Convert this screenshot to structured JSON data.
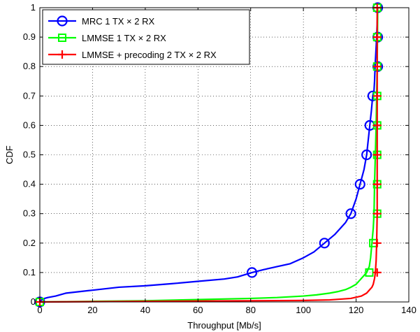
{
  "chart_data": {
    "type": "line",
    "title": "",
    "xlabel": "Throughput [Mb/s]",
    "ylabel": "CDF",
    "xlim": [
      0,
      140
    ],
    "ylim": [
      0,
      1
    ],
    "xticks": [
      "0",
      "20",
      "40",
      "60",
      "80",
      "100",
      "120",
      "140"
    ],
    "yticks": [
      "0",
      "0.1",
      "0.2",
      "0.3",
      "0.4",
      "0.5",
      "0.6",
      "0.7",
      "0.8",
      "0.9",
      "1"
    ],
    "grid": true,
    "legend_position": "top-left",
    "series": [
      {
        "name": "MRC 1 TX × 2 RX",
        "color": "#0000ff",
        "marker": "circle",
        "x": [
          0,
          1,
          3,
          6,
          10,
          15,
          20,
          25,
          30,
          40,
          50,
          60,
          70,
          75,
          80.5,
          85,
          90,
          95,
          100,
          104,
          108,
          112,
          116,
          118,
          120,
          121.5,
          123,
          124,
          124.6,
          125.2,
          125.8,
          126.3,
          126.8,
          127,
          127.2,
          127.5,
          127.8,
          128.2
        ],
        "y": [
          0,
          0.01,
          0.015,
          0.02,
          0.03,
          0.035,
          0.04,
          0.045,
          0.05,
          0.055,
          0.062,
          0.07,
          0.078,
          0.085,
          0.1,
          0.11,
          0.12,
          0.13,
          0.15,
          0.17,
          0.2,
          0.23,
          0.27,
          0.3,
          0.35,
          0.4,
          0.45,
          0.5,
          0.55,
          0.6,
          0.65,
          0.7,
          0.72,
          0.75,
          0.8,
          0.85,
          0.9,
          1.0
        ],
        "marker_x": [
          0,
          80.5,
          108,
          118,
          121.5,
          124,
          125.2,
          126.3,
          128.2,
          128.2,
          128.2
        ],
        "marker_y": [
          0,
          0.1,
          0.2,
          0.3,
          0.4,
          0.5,
          0.6,
          0.7,
          0.8,
          0.9,
          1.0
        ]
      },
      {
        "name": "LMMSE 1 TX × 2 RX",
        "color": "#00ff00",
        "marker": "square",
        "x": [
          0,
          10,
          20,
          40,
          60,
          80,
          90,
          100,
          105,
          110,
          113,
          116,
          118,
          120,
          121.5,
          123,
          124,
          125,
          125.5,
          126,
          126.5,
          126.8,
          127,
          127.3,
          127.6,
          127.8,
          128,
          128.2
        ],
        "y": [
          0,
          0.001,
          0.002,
          0.004,
          0.008,
          0.012,
          0.015,
          0.02,
          0.024,
          0.03,
          0.035,
          0.042,
          0.05,
          0.06,
          0.075,
          0.09,
          0.1,
          0.12,
          0.15,
          0.2,
          0.25,
          0.3,
          0.4,
          0.5,
          0.6,
          0.7,
          0.8,
          1.0
        ],
        "marker_x": [
          0,
          125,
          126.5,
          128,
          128,
          128,
          128,
          128,
          128,
          128,
          128
        ],
        "marker_y": [
          0,
          0.1,
          0.2,
          0.3,
          0.4,
          0.5,
          0.6,
          0.7,
          0.8,
          0.9,
          1.0
        ]
      },
      {
        "name": "LMMSE + precoding 2 TX × 2 RX",
        "color": "#ff0000",
        "marker": "plus",
        "x": [
          0,
          20,
          40,
          60,
          80,
          100,
          110,
          118,
          122,
          124,
          125,
          126,
          126.5,
          127,
          127.3,
          127.6,
          127.8,
          128,
          128,
          128,
          128
        ],
        "y": [
          0,
          0.001,
          0.002,
          0.003,
          0.004,
          0.005,
          0.007,
          0.012,
          0.02,
          0.03,
          0.04,
          0.05,
          0.06,
          0.08,
          0.1,
          0.14,
          0.2,
          0.3,
          0.5,
          0.8,
          1.0
        ],
        "marker_x": [
          0,
          128,
          128,
          128,
          128,
          128,
          128,
          128,
          128,
          128,
          128
        ],
        "marker_y": [
          0,
          0.1,
          0.2,
          0.3,
          0.4,
          0.5,
          0.6,
          0.7,
          0.8,
          0.9,
          1.0
        ]
      }
    ]
  }
}
